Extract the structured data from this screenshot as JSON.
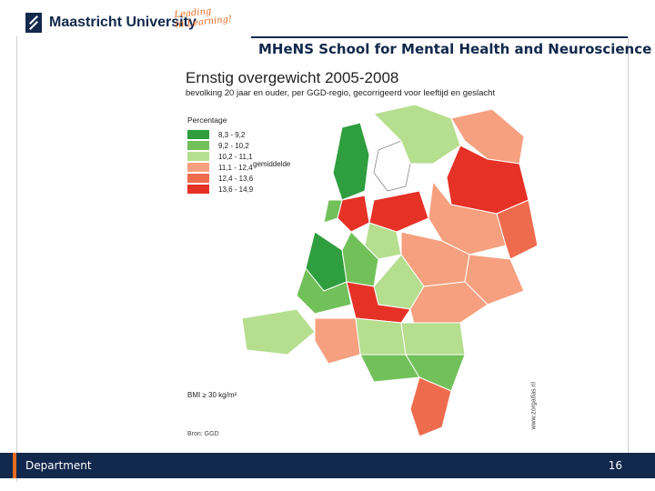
{
  "header": {
    "university": "Maastricht University",
    "slogan_line1": "Leading",
    "slogan_line2": "in Learning!",
    "school": "MHeNS School for Mental Health and Neuroscience"
  },
  "map": {
    "title": "Ernstig overgewicht 2005-2008",
    "subtitle": "bevolking 20 jaar en ouder, per GGD-regio, gecorrigeerd voor leeftijd en geslacht",
    "legend_title": "Percentage",
    "legend": [
      {
        "label": "8,3 -   9,2",
        "color": "#2e9e3e"
      },
      {
        "label": "9,2 - 10,2",
        "color": "#72c05a"
      },
      {
        "label": "10,2 - 11,1",
        "color": "#b5de8f"
      },
      {
        "label": "11,1 - 12,4",
        "color": "#f6a07f"
      },
      {
        "label": "12,4 - 13,6",
        "color": "#ef6b4e"
      },
      {
        "label": "13,6 - 14,9",
        "color": "#e63127"
      }
    ],
    "average_label": "gemiddelde",
    "bmi_note": "BMI ≥ 30 kg/m²",
    "source": "Bron: GGD",
    "credit": "www.zorgatlas.nl"
  },
  "footer": {
    "department": "Department",
    "page": "16"
  }
}
